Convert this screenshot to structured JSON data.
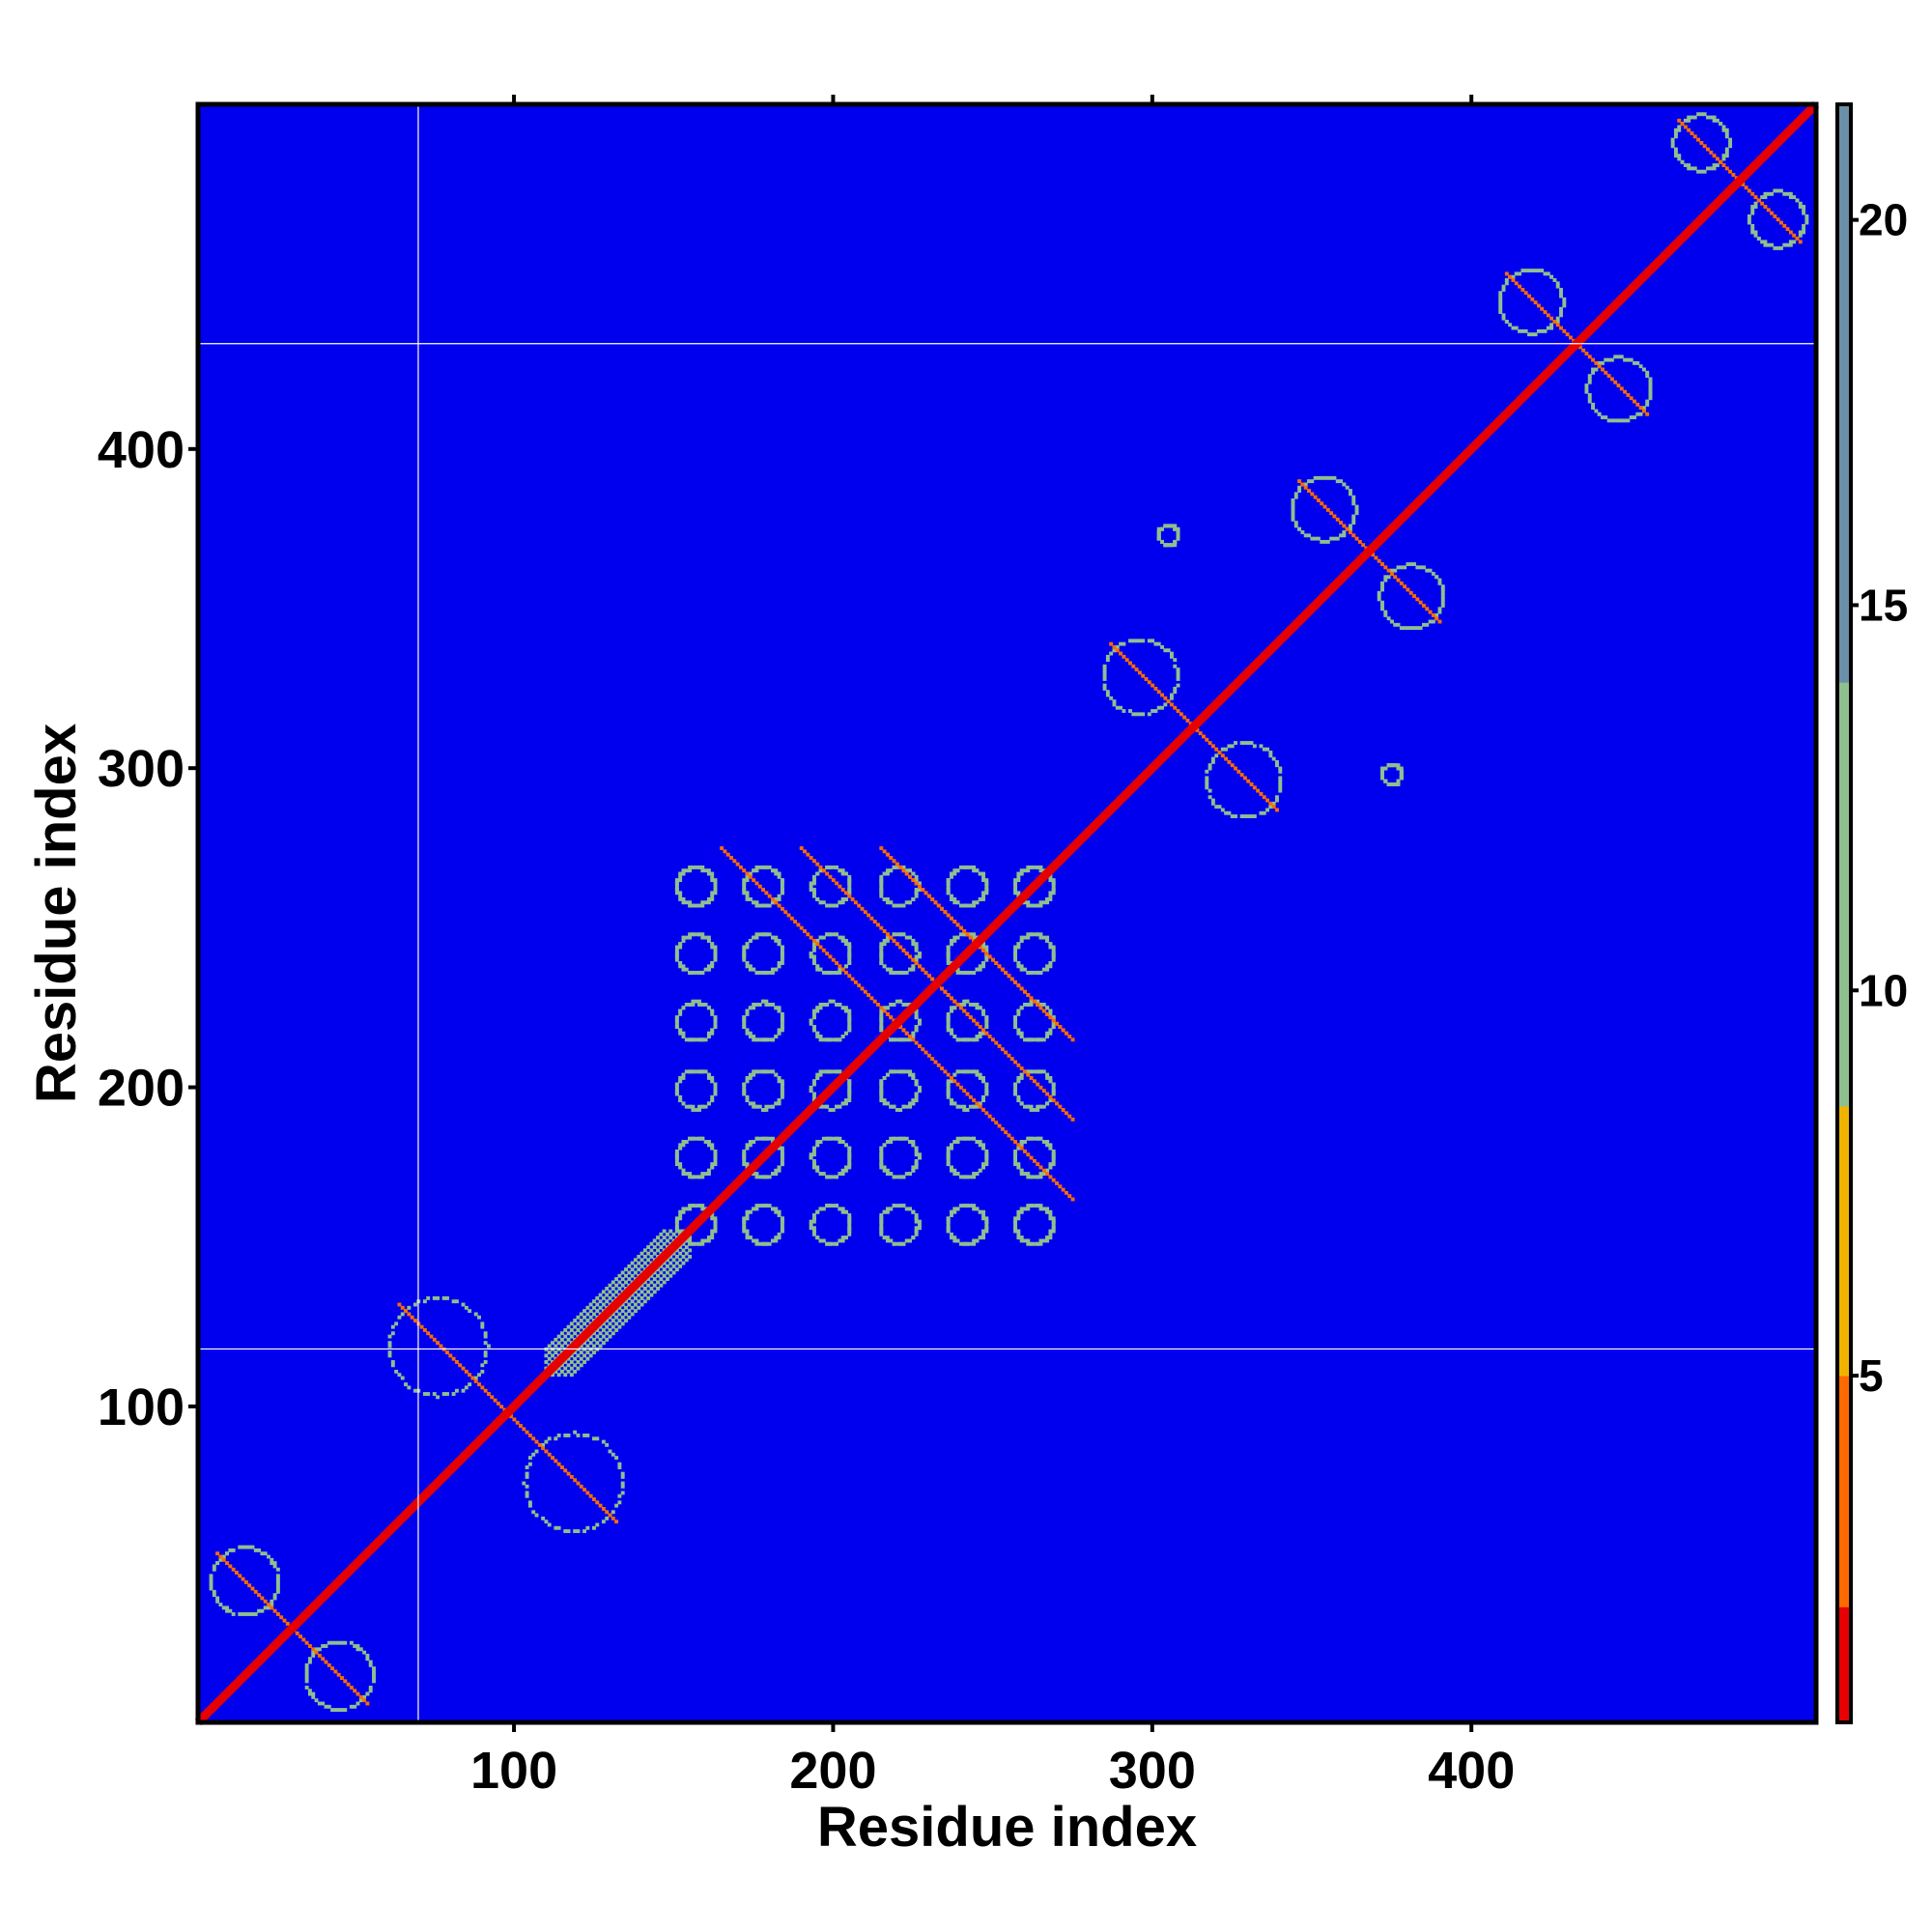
{
  "chart_data": {
    "type": "heatmap",
    "title": "",
    "xlabel": "Residue index",
    "ylabel": "Residue index",
    "xlim": [
      1,
      508
    ],
    "ylim": [
      1,
      508
    ],
    "x_ticks": [
      100,
      200,
      300,
      400
    ],
    "y_ticks": [
      100,
      200,
      300,
      400
    ],
    "colorbar": {
      "range": [
        0.5,
        21.5
      ],
      "ticks": [
        5,
        10,
        15,
        20
      ],
      "colors": [
        "#e60000",
        "#f0b400",
        "#8fbf8f",
        "#6b8fa8",
        "#0000ee"
      ],
      "breaks": [
        0.5,
        8.5,
        9.5,
        21.5
      ]
    },
    "background_value": 21.5,
    "background_color": "#0000ee",
    "grid_lines": {
      "x": [
        70
      ],
      "y": [
        118,
        433
      ]
    },
    "grid_line_color": "#ffffff",
    "diagonal": {
      "from": 1,
      "to": 508,
      "value": 1
    },
    "domains": [
      {
        "name": "",
        "start": 1,
        "end": 60,
        "pattern": "cross",
        "value": 11
      },
      {
        "name": "",
        "start": 55,
        "end": 140,
        "pattern": "cross",
        "value": 11
      },
      {
        "name": "",
        "start": 110,
        "end": 155,
        "pattern": "band",
        "value": 11
      },
      {
        "name": "",
        "start": 145,
        "end": 275,
        "pattern": "lattice",
        "value": 11
      },
      {
        "name": "",
        "start": 280,
        "end": 345,
        "pattern": "petal",
        "value": 11
      },
      {
        "name": "",
        "start": 340,
        "end": 395,
        "pattern": "petal",
        "value": 11
      },
      {
        "name": "",
        "start": 405,
        "end": 460,
        "pattern": "petal",
        "value": 11
      },
      {
        "name": "",
        "start": 460,
        "end": 508,
        "pattern": "petal",
        "value": 11
      }
    ],
    "isolated_spots": [
      {
        "x": 305,
        "y": 373,
        "value": 11
      },
      {
        "x": 375,
        "y": 298,
        "value": 11
      }
    ]
  }
}
